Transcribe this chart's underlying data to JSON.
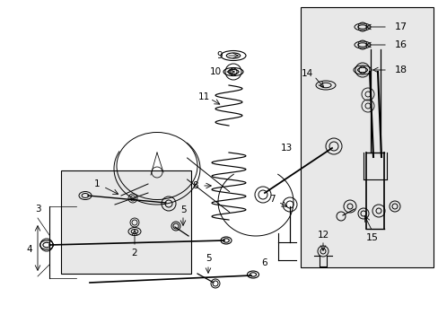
{
  "background_color": "#ffffff",
  "line_color": "#000000",
  "fig_width": 4.89,
  "fig_height": 3.6,
  "dpi": 100,
  "shade_color": "#e8e8e8"
}
